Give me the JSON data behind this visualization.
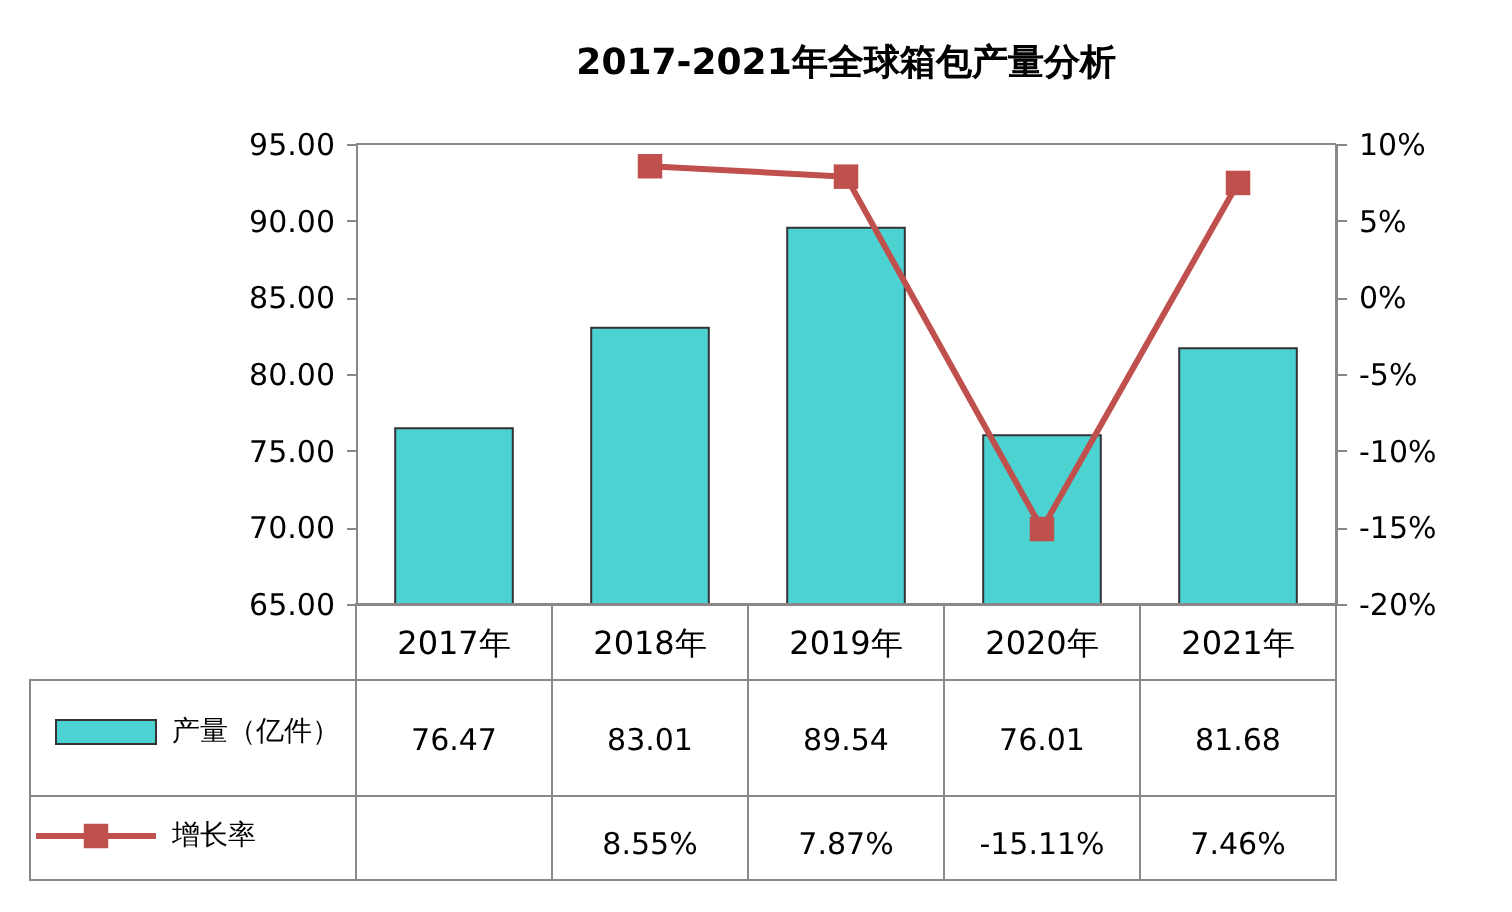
{
  "chart_data": {
    "type": "bar",
    "title": "2017-2021年全球箱包产量分析",
    "categories": [
      "2017年",
      "2018年",
      "2019年",
      "2020年",
      "2021年"
    ],
    "series": [
      {
        "name": "产量（亿件）",
        "color": "#4dd2d2",
        "values": [
          76.47,
          83.01,
          89.54,
          76.01,
          81.68
        ]
      },
      {
        "name": "增长率",
        "type": "line",
        "axis": "y2",
        "color": "#c0504d",
        "marker": "square",
        "values": [
          null,
          8.55,
          7.87,
          -15.11,
          7.46
        ],
        "value_labels": [
          null,
          "8.55%",
          "7.87%",
          "-15.11%",
          "7.46%"
        ]
      }
    ],
    "ylim": [
      65,
      95
    ],
    "yticks": [
      {
        "value": 65,
        "label": "65.00"
      },
      {
        "value": 70,
        "label": "70.00"
      },
      {
        "value": 75,
        "label": "75.00"
      },
      {
        "value": 80,
        "label": "80.00"
      },
      {
        "value": 85,
        "label": "85.00"
      },
      {
        "value": 90,
        "label": "90.00"
      },
      {
        "value": 95,
        "label": "95.00"
      }
    ],
    "y2lim": [
      -20,
      10
    ],
    "y2ticks": [
      {
        "value": -20,
        "label": "-20%"
      },
      {
        "value": -15,
        "label": "-15%"
      },
      {
        "value": -10,
        "label": "-10%"
      },
      {
        "value": -5,
        "label": "-5%"
      },
      {
        "value": 0,
        "label": "0%"
      },
      {
        "value": 5,
        "label": "5%"
      },
      {
        "value": 10,
        "label": "10%"
      }
    ],
    "data_labels": true,
    "legend": "bottom",
    "grid": false
  }
}
